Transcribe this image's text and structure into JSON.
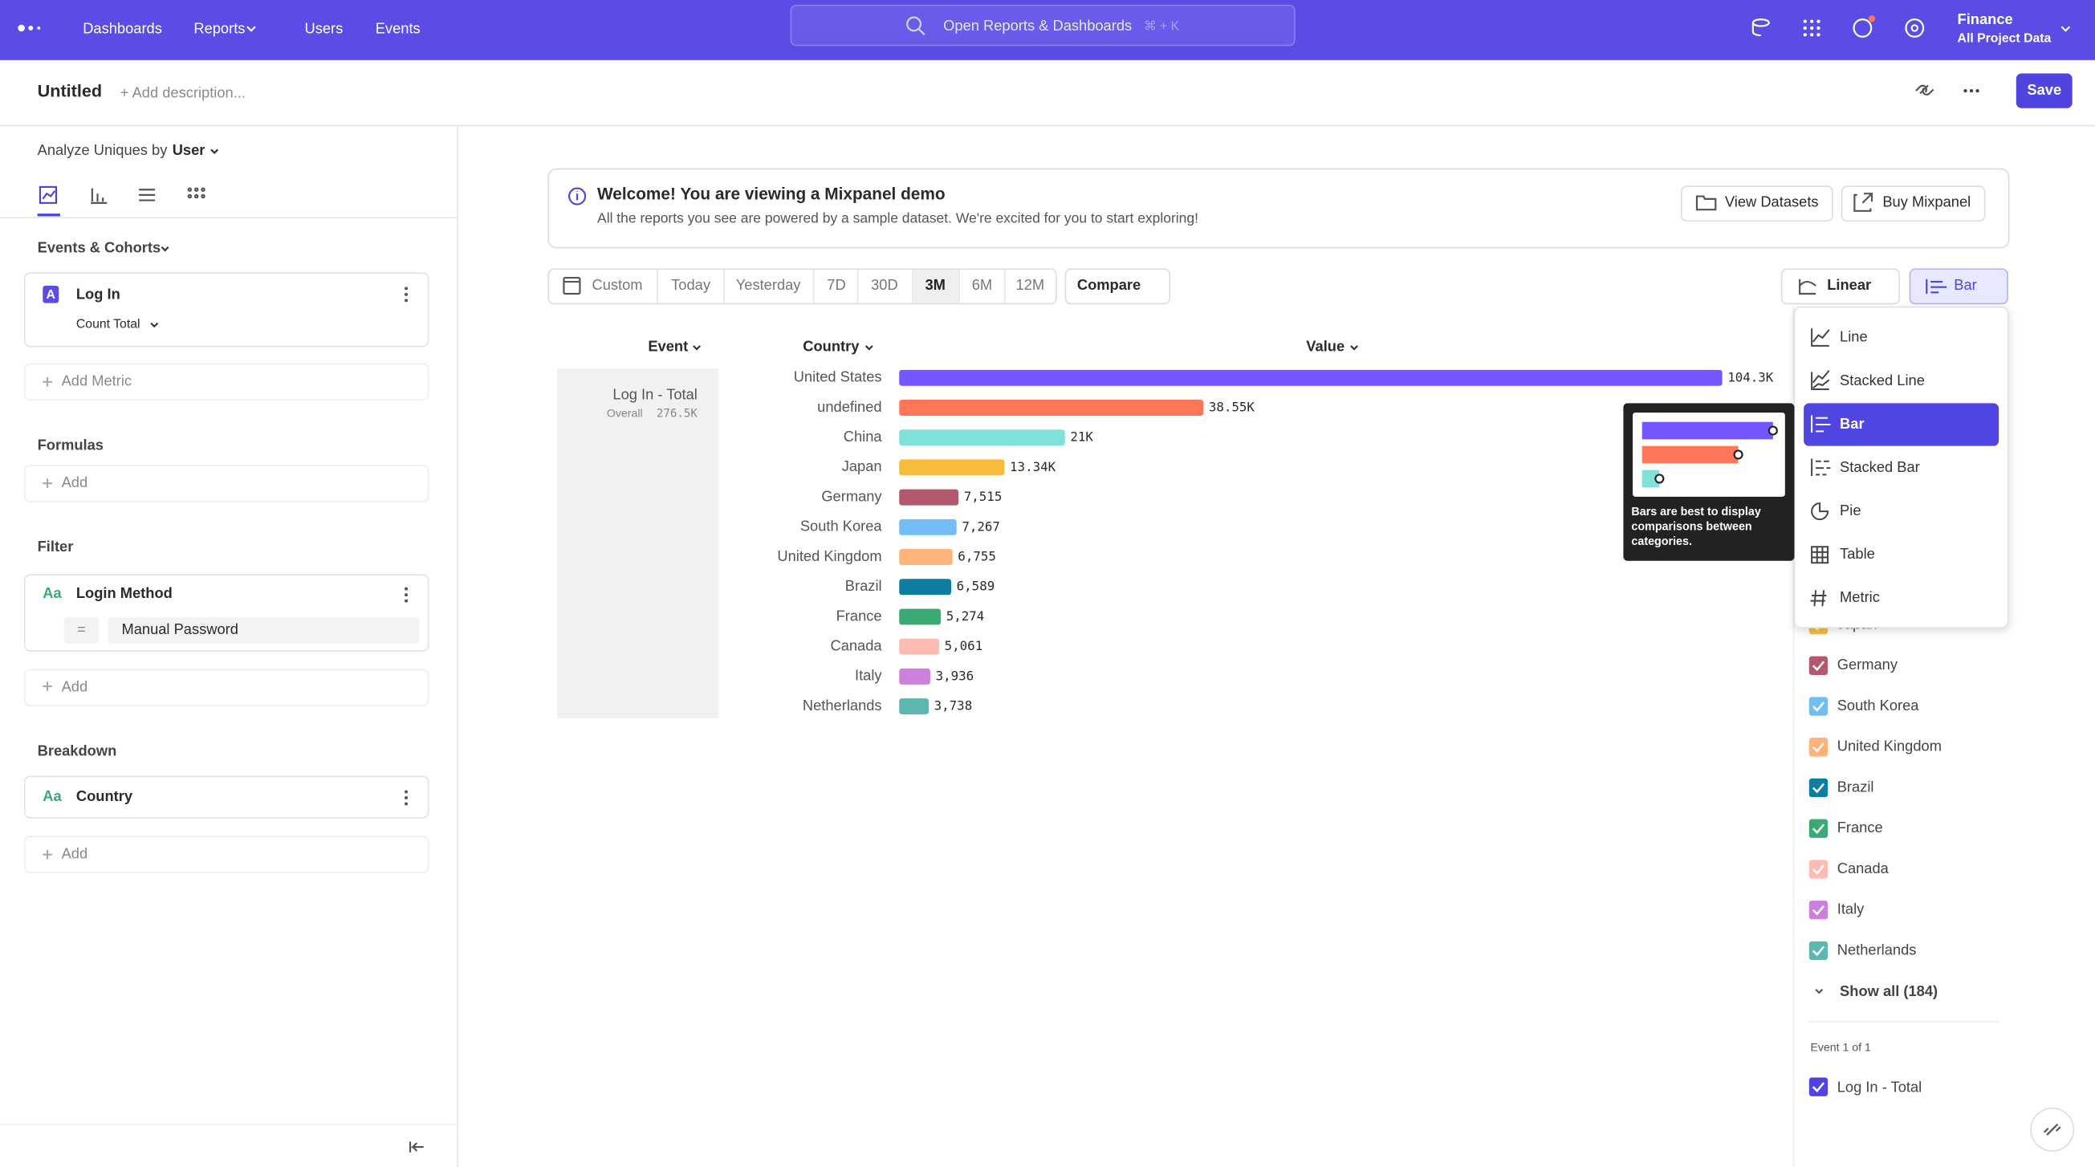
{
  "nav": {
    "items": [
      "Dashboards",
      "Reports",
      "Users",
      "Events"
    ],
    "search": "Open Reports & Dashboards",
    "shortcut": "⌘ + K",
    "org": "Finance",
    "project": "All Project Data"
  },
  "header": {
    "title": "Untitled",
    "description": "+ Add description...",
    "save": "Save"
  },
  "sidebar": {
    "analyze": "Analyze Uniques by",
    "unit": "User",
    "events_title": "Events & Cohorts",
    "metric_badge": "A",
    "metric": "Log In",
    "metric_agg": "Count Total",
    "add_metric": "Add Metric",
    "formulas_title": "Formulas",
    "add_formula": "Add",
    "filter_title": "Filter",
    "filter_icon": "Aa",
    "filter_property": "Login Method",
    "filter_operator": "=",
    "filter_value": "Manual Password",
    "add_filter": "Add",
    "breakdown_title": "Breakdown",
    "breakdown_icon": "Aa",
    "breakdown_property": "Country",
    "add_breakdown": "Add"
  },
  "banner": {
    "title": "Welcome! You are viewing a Mixpanel demo",
    "body": "All the reports you see are powered by a sample dataset. We're excited for you to start exploring!",
    "buttons": [
      "View Datasets",
      "Buy Mixpanel"
    ]
  },
  "toolbar": {
    "dates": [
      "Custom",
      "Today",
      "Yesterday",
      "7D",
      "30D",
      "3M",
      "6M",
      "12M"
    ],
    "selected_date": 5,
    "compare": "Compare",
    "scale": "Linear",
    "chart_type": "Bar"
  },
  "chart": {
    "type": "bar",
    "columns": [
      "Event",
      "Country",
      "Value"
    ],
    "event": "Log In - Total",
    "overall_label": "Overall",
    "overall_value": "276.5K",
    "categories": [
      "United States",
      "undefined",
      "China",
      "Japan",
      "Germany",
      "South Korea",
      "United Kingdom",
      "Brazil",
      "France",
      "Canada",
      "Italy",
      "Netherlands"
    ],
    "values": [
      104300,
      38550,
      21000,
      13340,
      7515,
      7267,
      6755,
      6589,
      5274,
      5061,
      3936,
      3738
    ],
    "value_labels": [
      "104.3K",
      "38.55K",
      "21K",
      "13.34K",
      "7,515",
      "7,267",
      "6,755",
      "6,589",
      "5,274",
      "5,061",
      "3,936",
      "3,738"
    ],
    "colors": [
      "#7856ff",
      "#ff7557",
      "#80e1d9",
      "#f8bc3b",
      "#b2596e",
      "#72bef4",
      "#ffb27a",
      "#0d7ea0",
      "#3ba974",
      "#febbb2",
      "#cb80dc",
      "#5bb7af"
    ]
  },
  "menu": {
    "items": [
      "Line",
      "Stacked Line",
      "Bar",
      "Stacked Bar",
      "Pie",
      "Table",
      "Metric"
    ],
    "selected": 2,
    "tooltip": "Bars are best to display comparisons between categories."
  },
  "legend": {
    "items": [
      {
        "label": "Japan",
        "color": "#f8bc3b"
      },
      {
        "label": "Germany",
        "color": "#b2596e"
      },
      {
        "label": "South Korea",
        "color": "#72bef4"
      },
      {
        "label": "United Kingdom",
        "color": "#ffb27a"
      },
      {
        "label": "Brazil",
        "color": "#0d7ea0"
      },
      {
        "label": "France",
        "color": "#3ba974"
      },
      {
        "label": "Canada",
        "color": "#febbb2"
      },
      {
        "label": "Italy",
        "color": "#cb80dc"
      },
      {
        "label": "Netherlands",
        "color": "#5bb7af"
      }
    ],
    "show_all": "Show all (184)",
    "event_count": "Event 1 of 1",
    "event": "Log In - Total"
  }
}
